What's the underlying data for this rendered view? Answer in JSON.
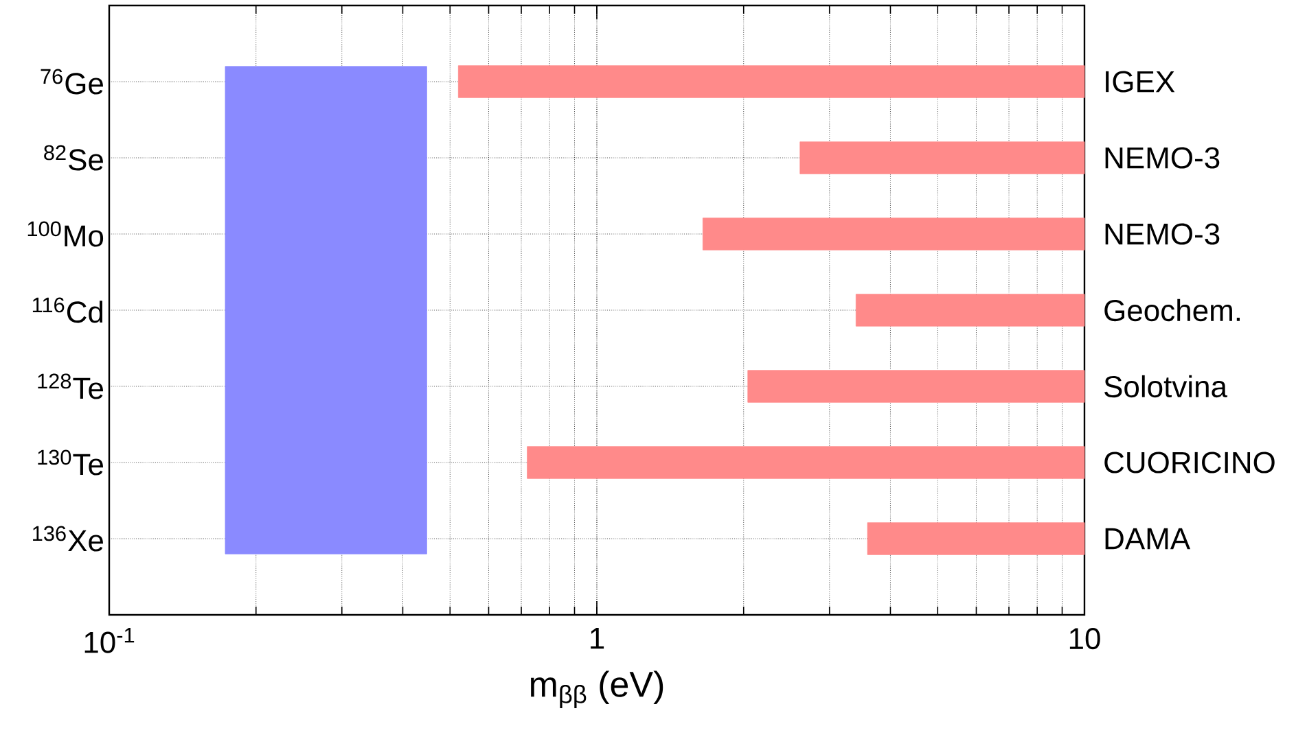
{
  "chart_data": {
    "type": "bar",
    "orientation": "horizontal",
    "categories": [
      "$^{76}$Ge",
      "$^{82}$Se",
      "$^{100}$Mo",
      "$^{116}$Cd",
      "$^{128}$Te",
      "$^{130}$Te",
      "$^{136}$Xe"
    ],
    "base": [
      0.52,
      2.61,
      1.65,
      3.4,
      2.04,
      0.72,
      3.59
    ],
    "values": [
      9.48,
      7.39,
      8.35,
      6.6,
      7.96,
      9.28,
      6.41
    ],
    "color": "#ff8a8a",
    "xlim": [
      0.1,
      10
    ],
    "xticks": [
      {
        "value": 0.1,
        "label": "10$^{-1}$"
      },
      1,
      10
    ],
    "log": "x",
    "grid": true,
    "xlabel": "m$_{ββ}$ (eV)",
    "annotations": [
      "IGEX",
      "NEMO-3",
      "NEMO-3",
      "Geochem.",
      "Solotvina",
      "CUORICINO",
      "DAMA"
    ],
    "bands": [
      {
        "axis": "x",
        "from": 0.173,
        "to": 0.448,
        "color": "#8a8aff"
      }
    ]
  }
}
